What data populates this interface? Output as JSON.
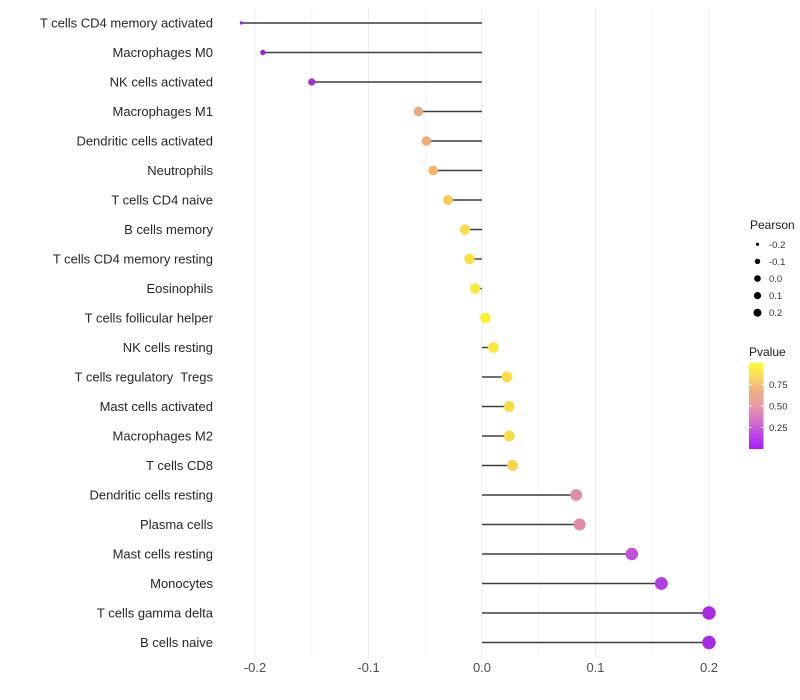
{
  "chart_data": {
    "type": "scatter",
    "subtype": "lollipop",
    "title": "",
    "xlabel": "",
    "ylabel": "",
    "grid": "vertical-only",
    "xlim": [
      -0.233,
      0.221
    ],
    "x_major_ticks": [
      {
        "label": "-0.2",
        "value": -0.2
      },
      {
        "label": "-0.1",
        "value": -0.1
      },
      {
        "label": "0.0",
        "value": 0.0
      },
      {
        "label": "0.1",
        "value": 0.1
      },
      {
        "label": "0.2",
        "value": 0.2
      }
    ],
    "x_minor_tick_values": [
      -0.15,
      -0.05,
      0.05,
      0.15
    ],
    "baseline_value": 0.0,
    "rows": [
      {
        "label": "T cells CD4 memory activated",
        "pearson": -0.212,
        "color": "#8E2BE1"
      },
      {
        "label": "Macrophages M0",
        "pearson": -0.193,
        "color": "#9326DA"
      },
      {
        "label": "NK cells activated",
        "pearson": -0.15,
        "color": "#A32CD2"
      },
      {
        "label": "Macrophages M1",
        "pearson": -0.056,
        "color": "#EBA77D"
      },
      {
        "label": "Dendritic cells activated",
        "pearson": -0.049,
        "color": "#EFAB75"
      },
      {
        "label": "Neutrophils",
        "pearson": -0.043,
        "color": "#F2B768"
      },
      {
        "label": "T cells CD4 naive",
        "pearson": -0.03,
        "color": "#F5CB59"
      },
      {
        "label": "B cells memory",
        "pearson": -0.015,
        "color": "#F8DB49"
      },
      {
        "label": "T cells CD4 memory resting",
        "pearson": -0.011,
        "color": "#F9E040"
      },
      {
        "label": "Eosinophils",
        "pearson": -0.006,
        "color": "#FAE936"
      },
      {
        "label": "T cells follicular helper",
        "pearson": 0.003,
        "color": "#FCF02B"
      },
      {
        "label": "NK cells resting",
        "pearson": 0.01,
        "color": "#FAE73A"
      },
      {
        "label": "T cells regulatory  Tregs",
        "pearson": 0.022,
        "color": "#F8DE44"
      },
      {
        "label": "Mast cells activated",
        "pearson": 0.024,
        "color": "#F8DC46"
      },
      {
        "label": "Macrophages M2",
        "pearson": 0.024,
        "color": "#F8DC46"
      },
      {
        "label": "T cells CD8",
        "pearson": 0.027,
        "color": "#F6D54F"
      },
      {
        "label": "Dendritic cells resting",
        "pearson": 0.083,
        "color": "#E18DA3"
      },
      {
        "label": "Plasma cells",
        "pearson": 0.086,
        "color": "#E08CA6"
      },
      {
        "label": "Mast cells resting",
        "pearson": 0.132,
        "color": "#C250D8"
      },
      {
        "label": "Monocytes",
        "pearson": 0.158,
        "color": "#B23BE2"
      },
      {
        "label": "T cells gamma delta",
        "pearson": 0.2,
        "color": "#A92AE6"
      },
      {
        "label": "B cells naive",
        "pearson": 0.2,
        "color": "#A92AE6"
      }
    ],
    "legend_size": {
      "title": "Pearson",
      "entries": [
        {
          "label": "-0.2",
          "value": -0.2
        },
        {
          "label": "-0.1",
          "value": -0.1
        },
        {
          "label": "0.0",
          "value": 0.0
        },
        {
          "label": "0.1",
          "value": 0.1
        },
        {
          "label": "0.2",
          "value": 0.2
        }
      ],
      "dot_color": "#000000"
    },
    "legend_color": {
      "title": "Pvalue",
      "ticks": [
        {
          "label": "0.75",
          "t": 0.25
        },
        {
          "label": "0.50",
          "t": 0.5
        },
        {
          "label": "0.25",
          "t": 0.75
        }
      ],
      "gradient_stops": [
        {
          "t": 0.0,
          "color": "#FCFD2F"
        },
        {
          "t": 0.15,
          "color": "#F9DD5F"
        },
        {
          "t": 0.32,
          "color": "#F0B183"
        },
        {
          "t": 0.5,
          "color": "#E79AA6"
        },
        {
          "t": 0.68,
          "color": "#D86EC8"
        },
        {
          "t": 0.84,
          "color": "#BE43E8"
        },
        {
          "t": 1.0,
          "color": "#A41EFA"
        }
      ]
    },
    "style_colors": {
      "stem": "#3D3D3D",
      "grid_major": "#ECECEC",
      "grid_minor": "#F4F4F4",
      "background": "#FFFFFF"
    }
  }
}
